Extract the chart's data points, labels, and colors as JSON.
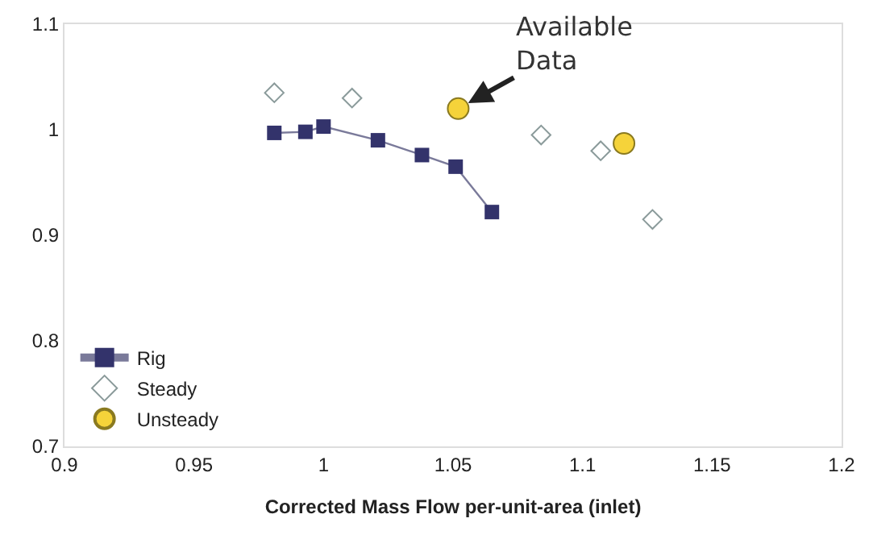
{
  "chart_data": {
    "type": "scatter",
    "xlabel": "Corrected Mass Flow per-unit-area (inlet)",
    "xlim": [
      0.9,
      1.2
    ],
    "xticks": [
      0.9,
      0.95,
      1,
      1.05,
      1.1,
      1.15,
      1.2
    ],
    "ylim": [
      0.7,
      1.1
    ],
    "yticks": [
      0.7,
      0.8,
      0.9,
      1,
      1.1
    ],
    "legend": "bottom left",
    "series": [
      {
        "name": "Rig",
        "type": "line",
        "marker": "square",
        "color": "#33336b",
        "x": [
          0.981,
          0.993,
          1.0,
          1.021,
          1.038,
          1.051,
          1.065
        ],
        "values": [
          0.997,
          0.998,
          1.003,
          0.99,
          0.976,
          0.965,
          0.922
        ]
      },
      {
        "name": "Steady",
        "marker": "diamond",
        "color": "#8a9a9a",
        "x": [
          0.981,
          1.011,
          1.084,
          1.107,
          1.127
        ],
        "values": [
          1.035,
          1.03,
          0.995,
          0.98,
          0.915
        ]
      },
      {
        "name": "Unsteady",
        "marker": "circle",
        "color": "#f5d33a",
        "x": [
          1.052,
          1.116
        ],
        "values": [
          1.02,
          0.987
        ]
      }
    ],
    "annotations": [
      {
        "text": "Available\nData",
        "x": 1.052,
        "y": 1.02
      }
    ]
  }
}
